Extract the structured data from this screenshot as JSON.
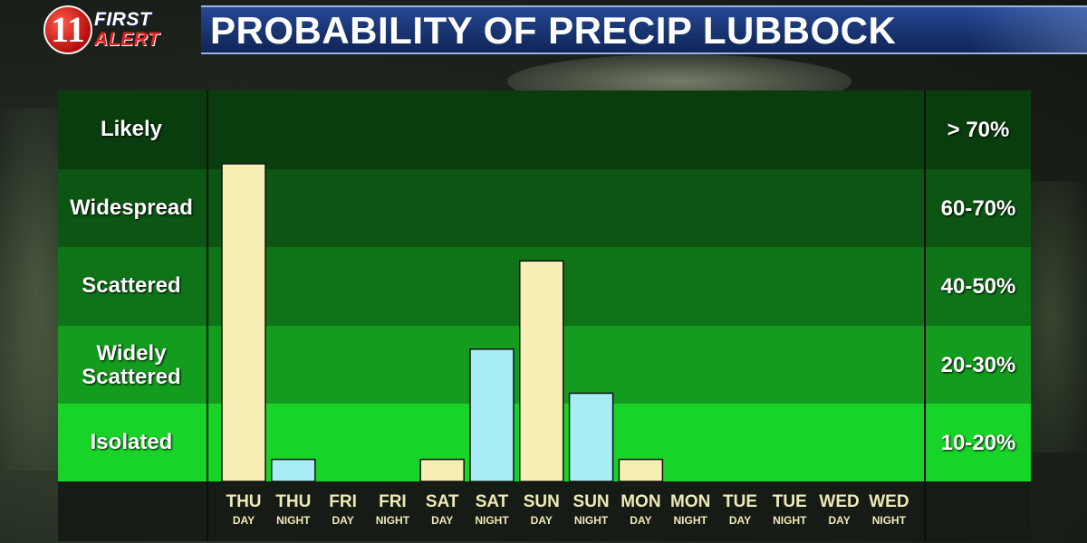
{
  "header": {
    "logo_number": "11",
    "logo_line1": "FIRST",
    "logo_line2": "ALERT",
    "title": "PROBABILITY OF PRECIP LUBBOCK"
  },
  "colors": {
    "day_bar": "#f6eeb2",
    "night_bar": "#a8ecf5",
    "band_likely": "#0a3d0d",
    "band_widespread": "#0c5512",
    "band_scattered": "#0f7318",
    "band_widely_scattered": "#139c1e",
    "band_isolated": "#18d428",
    "title_bar": "#1d3a7e",
    "panel_bg": "#161b16"
  },
  "chart_data": {
    "type": "bar",
    "title": "PROBABILITY OF PRECIP LUBBOCK",
    "categories": [
      "THU DAY",
      "THU NIGHT",
      "FRI DAY",
      "FRI NIGHT",
      "SAT DAY",
      "SAT NIGHT",
      "SUN DAY",
      "SUN NIGHT",
      "MON DAY",
      "MON NIGHT",
      "TUE DAY",
      "TUE NIGHT",
      "WED DAY",
      "WED NIGHT"
    ],
    "periods": [
      {
        "day": "THU",
        "part": "DAY"
      },
      {
        "day": "THU",
        "part": "NIGHT"
      },
      {
        "day": "FRI",
        "part": "DAY"
      },
      {
        "day": "FRI",
        "part": "NIGHT"
      },
      {
        "day": "SAT",
        "part": "DAY"
      },
      {
        "day": "SAT",
        "part": "NIGHT"
      },
      {
        "day": "SUN",
        "part": "DAY"
      },
      {
        "day": "SUN",
        "part": "NIGHT"
      },
      {
        "day": "MON",
        "part": "DAY"
      },
      {
        "day": "MON",
        "part": "NIGHT"
      },
      {
        "day": "TUE",
        "part": "DAY"
      },
      {
        "day": "TUE",
        "part": "NIGHT"
      },
      {
        "day": "WED",
        "part": "DAY"
      },
      {
        "day": "WED",
        "part": "NIGHT"
      }
    ],
    "values": [
      72,
      5,
      0,
      0,
      5,
      30,
      50,
      20,
      5,
      0,
      0,
      0,
      0,
      0
    ],
    "ylim": [
      0,
      80
    ],
    "bands": [
      {
        "label": "Likely",
        "range": "> 70%",
        "min": 70,
        "max": 80
      },
      {
        "label": "Widespread",
        "range": "60-70%",
        "min": 60,
        "max": 70
      },
      {
        "label": "Scattered",
        "range": "40-50%",
        "min": 40,
        "max": 60
      },
      {
        "label": "Widely Scattered",
        "range": "20-30%",
        "min": 20,
        "max": 40
      },
      {
        "label": "Isolated",
        "range": "10-20%",
        "min": 0,
        "max": 20
      }
    ],
    "grid": false,
    "legend": "none"
  }
}
